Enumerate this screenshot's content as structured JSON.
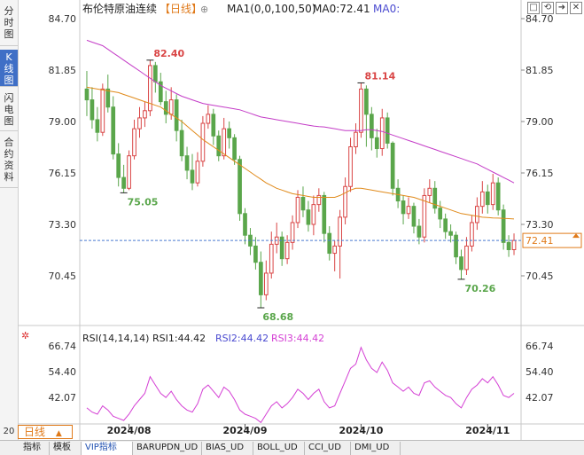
{
  "side_tabs": [
    {
      "label": "分时图",
      "active": false
    },
    {
      "label": "K线图",
      "active": true
    },
    {
      "label": "闪电图",
      "active": false
    },
    {
      "label": "合约资料",
      "active": false
    }
  ],
  "header": {
    "instrument": "布伦特原油连续",
    "period_tag": "【日线】",
    "ma_label": "MA1(0,0,100,50)",
    "ma0_label": "MA0:72.41",
    "ma0b_label": "MA0:"
  },
  "price_axis": {
    "ticks": [
      "84.70",
      "81.85",
      "79.00",
      "76.15",
      "73.30",
      "70.45"
    ],
    "current_price": "72.41",
    "min": 67.3,
    "max": 85.4
  },
  "annotations": {
    "high1": "82.40",
    "low1": "75.05",
    "low2": "68.68",
    "high2": "81.14",
    "low3": "70.26"
  },
  "rsi": {
    "label": "RSI(14,14,14)",
    "rsi1": "RSI1:44.42",
    "rsi2": "RSI2:44.42",
    "rsi3": "RSI3:44.42",
    "ticks": [
      "66.74",
      "54.40",
      "42.07"
    ],
    "min": 31,
    "max": 71
  },
  "date_axis": [
    "2024/08",
    "2024/09",
    "2024/10",
    "2024/11"
  ],
  "period_selector": {
    "label": "日线",
    "arrow": "▲",
    "left_num": "20"
  },
  "bottom_tabs": [
    "指标",
    "模板",
    "VIP指标",
    "BARUPDN_UD",
    "BIAS_UD",
    "BOLL_UD",
    "CCI_UD",
    "DMI_UD"
  ],
  "toolbar_icons": [
    "maximize-icon",
    "refresh-icon",
    "forward-icon",
    "close-icon"
  ],
  "colors": {
    "up": "#d94545",
    "down": "#5aa64b",
    "ma_orange": "#e08a1a",
    "ma_purple": "#c43cc7",
    "rsi": "#d43fd4",
    "accent": "#e07a1a"
  }
}
